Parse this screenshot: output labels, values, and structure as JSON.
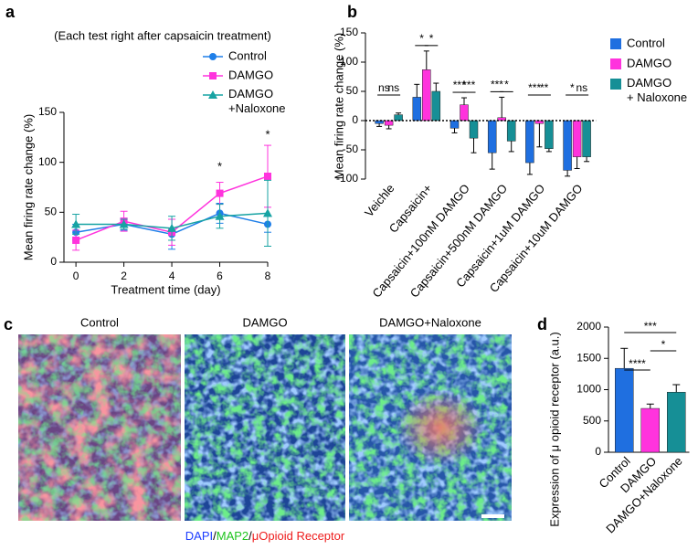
{
  "chart_data": [
    {
      "panel": "a",
      "type": "line",
      "subtitle": "(Each test right after capsaicin treatment)",
      "x_label": "Treatment time (day)",
      "y_label": "Mean firing rate change  (%)",
      "x": [
        0,
        2,
        4,
        6,
        8
      ],
      "xlim": [
        -0.5,
        8
      ],
      "xticks": [
        0,
        2,
        4,
        6,
        8
      ],
      "ylim": [
        0,
        150
      ],
      "yticks": [
        0,
        50,
        100,
        150
      ],
      "legend": "upper right",
      "series": [
        {
          "name": "Control",
          "color": "#1f7fe8",
          "marker": "circle",
          "values": [
            30,
            38,
            28,
            49,
            38
          ],
          "errors": [
            8,
            6,
            15,
            10,
            8
          ]
        },
        {
          "name": "DAMGO",
          "color": "#ff33dd",
          "marker": "square",
          "values": [
            22,
            41,
            30,
            69,
            86
          ],
          "errors": [
            10,
            10,
            13,
            11,
            31
          ]
        },
        {
          "name": "DAMGO +Naloxone",
          "color": "#17a3a3",
          "marker": "triangle",
          "values": [
            38,
            38,
            34,
            46,
            49
          ],
          "errors": [
            10,
            5,
            12,
            12,
            33
          ]
        }
      ],
      "annotations": [
        {
          "label": "*",
          "x": 6,
          "y": 95
        },
        {
          "label": "*",
          "x": 8,
          "y": 127
        }
      ]
    },
    {
      "panel": "b",
      "type": "grouped_bar",
      "y_label": "Mean firing rate change  (%)",
      "categories": [
        "Veichle",
        "Capsaicin+",
        "Capsaicin+100nM DAMGO",
        "Capsaicin+500nM DAMGO",
        "Capsaicin+1uM DAMGO",
        "Capsaicin+10uM DAMGO"
      ],
      "ylim": [
        -100,
        150
      ],
      "yticks": [
        -100,
        -50,
        0,
        50,
        100,
        150
      ],
      "zero_line": true,
      "legend": "right",
      "series": [
        {
          "name": "Control",
          "color": "#1f6fe0",
          "values": [
            -5,
            40,
            -13,
            -55,
            -72,
            -85
          ],
          "errors": [
            5,
            22,
            8,
            28,
            20,
            10
          ]
        },
        {
          "name": "DAMGO",
          "color": "#ff33dd",
          "values": [
            -8,
            87,
            27,
            5,
            -5,
            -62
          ],
          "errors": [
            6,
            32,
            12,
            35,
            40,
            20
          ]
        },
        {
          "name": "DAMGO + Naloxone",
          "color": "#168f96",
          "values": [
            10,
            50,
            -30,
            -35,
            -48,
            -62
          ],
          "errors": [
            3,
            14,
            25,
            18,
            5,
            8
          ]
        }
      ],
      "significance": [
        [
          "ns",
          "ns"
        ],
        [
          "*",
          "*"
        ],
        [
          "***",
          "***"
        ],
        [
          "***",
          "*"
        ],
        [
          "***",
          "**"
        ],
        [
          "*",
          "ns"
        ]
      ]
    },
    {
      "panel": "d",
      "type": "bar",
      "y_label": "Expression of μ opioid receptor (a.u.)",
      "categories": [
        "Control",
        "DAMGO",
        "DAMGO+Naloxone"
      ],
      "values": [
        1340,
        700,
        960
      ],
      "errors": [
        320,
        70,
        120
      ],
      "colors": [
        "#1f6fe0",
        "#ff33dd",
        "#168f96"
      ],
      "ylim": [
        0,
        2000
      ],
      "yticks": [
        0,
        500,
        1000,
        1500,
        2000
      ],
      "brackets": [
        {
          "label": "***",
          "from": 0,
          "to": 2
        },
        {
          "label": "*",
          "from": 1,
          "to": 2
        },
        {
          "label": "****",
          "from": 0,
          "to": 1
        }
      ]
    }
  ],
  "image_panel": {
    "panel": "c",
    "titles": [
      "Control",
      "DAMGO",
      "DAMGO+Naloxone"
    ],
    "caption": [
      "DAPI",
      "/",
      "MAP2",
      "/",
      "μOpioid Receptor"
    ]
  }
}
